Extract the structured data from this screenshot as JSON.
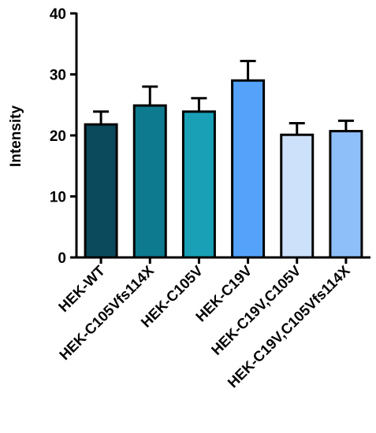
{
  "chart_data": {
    "type": "bar",
    "title": "",
    "xlabel": "",
    "ylabel": "Intensity",
    "ylim": [
      0,
      40
    ],
    "yticks": [
      "0",
      "10",
      "20",
      "30",
      "40"
    ],
    "categories": [
      "HEK-WT",
      "HEK-C105Vfs114X",
      "HEK-C105V",
      "HEK-C19V",
      "HEK-C19V,C105V",
      "HEK-C19V,C105Vfs114X"
    ],
    "values": [
      21.8,
      24.9,
      23.9,
      29.0,
      20.1,
      20.7
    ],
    "errors": [
      2.1,
      3.1,
      2.2,
      3.2,
      1.9,
      1.7
    ],
    "colors": [
      "#0a4a5c",
      "#0e7a8f",
      "#1aa0b6",
      "#55a2fb",
      "#cde1fb",
      "#8fbff9"
    ],
    "grid": false,
    "legend": "none"
  }
}
